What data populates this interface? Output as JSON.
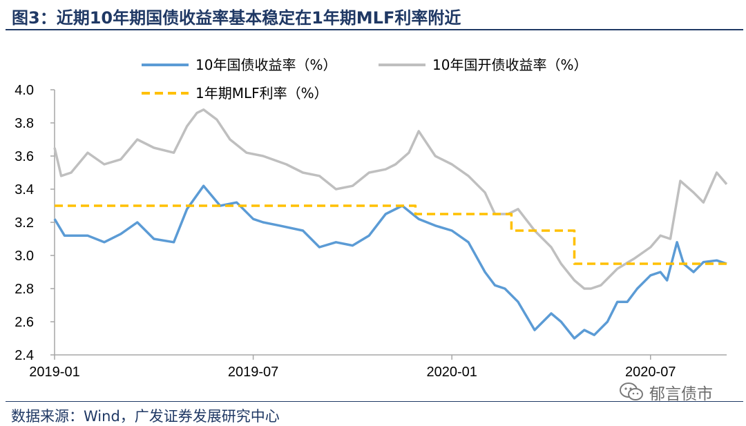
{
  "title": "图3：近期10年期国债收益率基本稳定在1年期MLF利率附近",
  "source": "数据来源：Wind，广发证券发展研究中心",
  "watermark": "郁言债市",
  "chart_data": {
    "type": "line",
    "xlabel": "",
    "ylabel": "",
    "ylim": [
      2.4,
      4.0
    ],
    "yticks": [
      4.0,
      3.8,
      3.6,
      3.4,
      3.2,
      3.0,
      2.8,
      2.6,
      2.4
    ],
    "ytick_labels": [
      "4.0",
      "3.8",
      "3.6",
      "3.4",
      "3.2",
      "3.0",
      "2.8",
      "2.6",
      "2.4"
    ],
    "x_range_months": [
      0,
      20.3
    ],
    "xticks": [
      0,
      6,
      12,
      18
    ],
    "xtick_labels": [
      "2019-01",
      "2019-07",
      "2020-01",
      "2020-07"
    ],
    "grid": false,
    "legend_position": "top",
    "series": [
      {
        "name": "10年国债收益率（%）",
        "color": "#5b9bd5",
        "style": "solid",
        "x": [
          0,
          0.3,
          0.5,
          1,
          1.5,
          2,
          2.5,
          3,
          3.6,
          4,
          4.5,
          5,
          5.5,
          6,
          6.3,
          6.8,
          7.5,
          8,
          8.5,
          9,
          9.5,
          10,
          10.5,
          11,
          11.5,
          12,
          12.5,
          13,
          13.3,
          13.6,
          14,
          14.5,
          15,
          15.3,
          15.7,
          16,
          16.3,
          16.7,
          17,
          17.3,
          17.6,
          18,
          18.3,
          18.5,
          18.8,
          19,
          19.3,
          19.6,
          20,
          20.3
        ],
        "values": [
          3.22,
          3.12,
          3.12,
          3.12,
          3.08,
          3.13,
          3.2,
          3.1,
          3.08,
          3.28,
          3.42,
          3.3,
          3.32,
          3.22,
          3.2,
          3.18,
          3.15,
          3.05,
          3.08,
          3.06,
          3.12,
          3.25,
          3.3,
          3.22,
          3.18,
          3.15,
          3.08,
          2.9,
          2.82,
          2.8,
          2.72,
          2.55,
          2.65,
          2.6,
          2.5,
          2.55,
          2.52,
          2.6,
          2.72,
          2.72,
          2.8,
          2.88,
          2.9,
          2.85,
          3.08,
          2.95,
          2.9,
          2.96,
          2.97,
          2.95
        ]
      },
      {
        "name": "10年国开债收益率（%）",
        "color": "#bfbfbf",
        "style": "solid",
        "x": [
          0,
          0.2,
          0.5,
          1,
          1.5,
          2,
          2.5,
          3,
          3.6,
          4,
          4.3,
          4.5,
          4.9,
          5.3,
          5.8,
          6.3,
          7,
          7.5,
          8,
          8.5,
          9,
          9.5,
          10,
          10.3,
          10.7,
          11,
          11.5,
          12,
          12.5,
          13,
          13.3,
          13.7,
          14,
          14.5,
          15,
          15.3,
          15.7,
          16,
          16.2,
          16.5,
          17,
          17.5,
          18,
          18.3,
          18.6,
          18.9,
          19.3,
          19.6,
          20,
          20.3
        ],
        "values": [
          3.65,
          3.48,
          3.5,
          3.62,
          3.55,
          3.58,
          3.7,
          3.65,
          3.62,
          3.78,
          3.86,
          3.88,
          3.82,
          3.7,
          3.62,
          3.6,
          3.55,
          3.5,
          3.48,
          3.4,
          3.42,
          3.5,
          3.52,
          3.55,
          3.62,
          3.75,
          3.6,
          3.55,
          3.48,
          3.38,
          3.25,
          3.25,
          3.28,
          3.15,
          3.05,
          2.95,
          2.85,
          2.8,
          2.8,
          2.82,
          2.92,
          2.98,
          3.05,
          3.12,
          3.1,
          3.45,
          3.38,
          3.32,
          3.5,
          3.43
        ]
      },
      {
        "name": "1年期MLF利率（%）",
        "color": "#ffc000",
        "style": "dashed",
        "x": [
          0,
          10.9,
          10.9,
          13.8,
          13.8,
          15.7,
          15.7,
          20.3
        ],
        "values": [
          3.3,
          3.3,
          3.25,
          3.25,
          3.15,
          3.15,
          2.95,
          2.95
        ]
      }
    ]
  }
}
